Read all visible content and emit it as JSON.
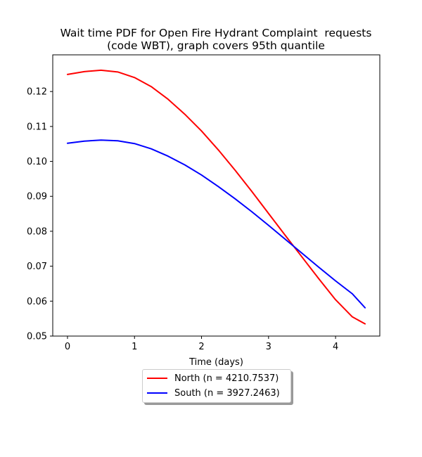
{
  "chart_data": {
    "type": "line",
    "title": "Wait time PDF for Open Fire Hydrant Complaint  requests",
    "subtitle": "(code WBT), graph covers 95th quantile",
    "xlabel": "Time (days)",
    "ylabel": "",
    "xlim": [
      -0.22,
      4.66
    ],
    "ylim": [
      0.05,
      0.1305
    ],
    "xticks": [
      0,
      1,
      2,
      3,
      4
    ],
    "xtick_labels": [
      "0",
      "1",
      "2",
      "3",
      "4"
    ],
    "yticks": [
      0.05,
      0.06,
      0.07,
      0.08,
      0.09,
      0.1,
      0.11,
      0.12
    ],
    "ytick_labels": [
      "0.05",
      "0.06",
      "0.07",
      "0.08",
      "0.09",
      "0.10",
      "0.11",
      "0.12"
    ],
    "grid": false,
    "legend_position": "below plot, centered",
    "x": [
      0,
      0.25,
      0.5,
      0.75,
      1,
      1.25,
      1.5,
      1.75,
      2,
      2.25,
      2.5,
      2.75,
      3,
      3.25,
      3.5,
      3.75,
      4,
      4.25,
      4.44
    ],
    "series": [
      {
        "name": "North (n = 4210.7537)",
        "color": "#ff0000",
        "values": [
          0.1249,
          0.1257,
          0.1261,
          0.1256,
          0.124,
          0.1214,
          0.1178,
          0.1135,
          0.1087,
          0.1033,
          0.0975,
          0.0914,
          0.0851,
          0.0788,
          0.0726,
          0.0664,
          0.0604,
          0.0555,
          0.0535
        ]
      },
      {
        "name": "South (n = 3927.2463)",
        "color": "#0000ff",
        "values": [
          0.1052,
          0.1058,
          0.1061,
          0.1059,
          0.1051,
          0.1036,
          0.1015,
          0.099,
          0.0961,
          0.0928,
          0.0893,
          0.0856,
          0.0817,
          0.0777,
          0.0737,
          0.0697,
          0.0658,
          0.0621,
          0.0581
        ]
      }
    ]
  }
}
